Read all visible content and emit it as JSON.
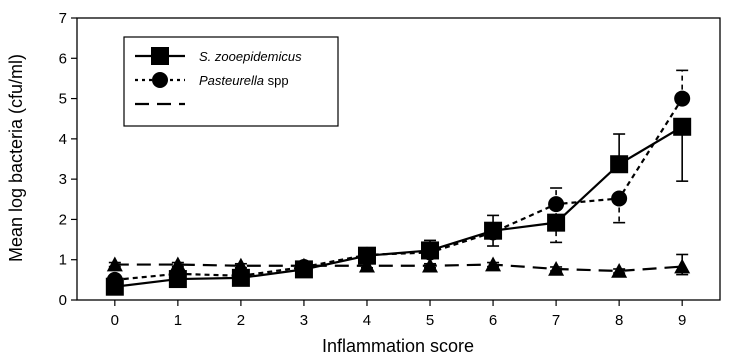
{
  "chart_data": {
    "type": "line",
    "xlabel": "Inflammation score",
    "ylabel": "Mean log bacteria (cfu/ml)",
    "x": [
      0,
      1,
      2,
      3,
      4,
      5,
      6,
      7,
      8,
      9
    ],
    "xlim": [
      -0.6,
      9.6
    ],
    "ylim": [
      0,
      7
    ],
    "xticks": [
      "0",
      "1",
      "2",
      "3",
      "4",
      "5",
      "6",
      "7",
      "8",
      "9"
    ],
    "yticks": [
      "0",
      "1",
      "2",
      "3",
      "4",
      "5",
      "6",
      "7"
    ],
    "grid": false,
    "legend_placement": "top-left",
    "series": [
      {
        "name": "S. zooepidemicus",
        "name_italic": "S. zooepidemicus",
        "name_suffix": "",
        "marker": "square",
        "line": "solid",
        "values": [
          0.33,
          0.52,
          0.55,
          0.76,
          1.1,
          1.23,
          1.72,
          1.92,
          3.37,
          4.3
        ],
        "err_hi": [
          0.12,
          0.08,
          0.08,
          0.15,
          0.15,
          0.25,
          0.38,
          0.0,
          0.75,
          0.0
        ],
        "err_lo": [
          0.12,
          0.08,
          0.08,
          0.15,
          0.15,
          0.18,
          0.38,
          0.0,
          0.0,
          1.35
        ]
      },
      {
        "name": "Pasteurella spp",
        "name_italic": "Pasteurella",
        "name_suffix": " spp",
        "marker": "circle",
        "line": "dotted",
        "values": [
          0.5,
          0.65,
          0.6,
          0.82,
          1.12,
          1.18,
          1.68,
          2.38,
          2.52,
          5.0
        ],
        "err_hi": [
          0.1,
          0.08,
          0.08,
          0.1,
          0.12,
          0.15,
          0.0,
          0.4,
          0.0,
          0.7
        ],
        "err_lo": [
          0.1,
          0.08,
          0.08,
          0.1,
          0.12,
          0.15,
          0.0,
          0.95,
          0.6,
          0.0
        ]
      },
      {
        "name": "",
        "name_italic": "",
        "name_suffix": "",
        "marker": "triangle",
        "line": "dashed",
        "values": [
          0.88,
          0.88,
          0.85,
          0.85,
          0.85,
          0.85,
          0.88,
          0.77,
          0.72,
          0.83
        ],
        "err_hi": [
          0.05,
          0.05,
          0.05,
          0.05,
          0.05,
          0.05,
          0.05,
          0.05,
          0.05,
          0.3
        ],
        "err_lo": [
          0.05,
          0.05,
          0.05,
          0.05,
          0.05,
          0.05,
          0.05,
          0.05,
          0.05,
          0.2
        ]
      }
    ]
  }
}
